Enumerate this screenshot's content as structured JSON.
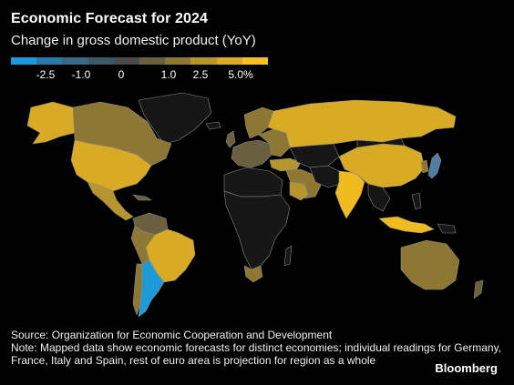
{
  "title": "Economic Forecast for 2024",
  "subtitle": "Change in gross domestic product (YoY)",
  "legend": {
    "colors": [
      "#1d9bd8",
      "#2b7aa6",
      "#376a86",
      "#3e5966",
      "#4b4b4b",
      "#6a5f3e",
      "#8e7733",
      "#b5952c",
      "#d9ab25",
      "#f7c21f"
    ],
    "labels": [
      "-2.5",
      "-1.0",
      "0",
      "1.0",
      "2.5",
      "5.0%"
    ]
  },
  "palette": {
    "no_data": "#161616",
    "border": "#9a9a9a",
    "high": "#f0bb1e",
    "mid_high": "#d9ab25",
    "mid": "#b5952c",
    "low": "#8e7733",
    "near_zero": "#6a5f3e",
    "negative": "#1d9bd8",
    "slightly_negative": "#4f7ea0"
  },
  "source": "Source: Organization for Economic Cooperation and Development",
  "note": "Note: Mapped data show economic forecasts for distinct economies; individual readings for Germany, France, Italy and Spain, rest of euro area is projection for region as a whole",
  "brand": "Bloomberg"
}
